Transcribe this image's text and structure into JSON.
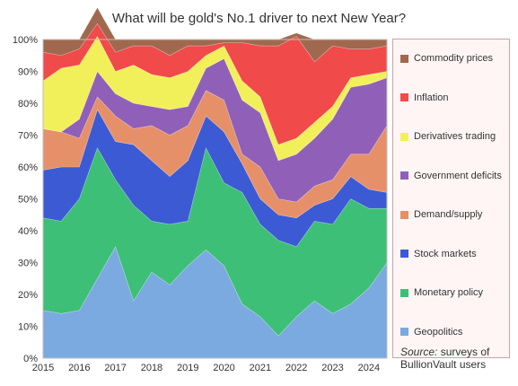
{
  "chart_data": {
    "type": "area",
    "title": "What will be gold's No.1 driver to next New Year?",
    "stacked": "percent",
    "x": [
      2015.0,
      2015.5,
      2016.0,
      2016.5,
      2017.0,
      2017.5,
      2018.0,
      2018.5,
      2019.0,
      2019.5,
      2020.0,
      2020.5,
      2021.0,
      2021.5,
      2022.0,
      2022.5,
      2023.0,
      2023.5,
      2024.0,
      2024.5
    ],
    "xlim": [
      2015,
      2024.5
    ],
    "ylim": [
      0,
      100
    ],
    "x_ticks": [
      "2015",
      "2016",
      "2017",
      "2018",
      "2019",
      "2020",
      "2021",
      "2022",
      "2023",
      "2024"
    ],
    "y_ticks": [
      "0%",
      "10%",
      "20%",
      "30%",
      "40%",
      "50%",
      "60%",
      "70%",
      "80%",
      "90%",
      "100%"
    ],
    "grid": true,
    "legend_position": "right",
    "series": [
      {
        "name": "Geopolitics",
        "color": "#7aaadf",
        "values": [
          15,
          14,
          15,
          25,
          35,
          18,
          27,
          23,
          29,
          34,
          29,
          17,
          13,
          7,
          13,
          18,
          14,
          17,
          22,
          30
        ]
      },
      {
        "name": "Monetary policy",
        "color": "#3dbf77",
        "values": [
          29,
          29,
          35,
          41,
          21,
          30,
          16,
          19,
          14,
          32,
          26,
          35,
          29,
          30,
          22,
          25,
          28,
          33,
          25,
          17
        ]
      },
      {
        "name": "Stock markets",
        "color": "#3c5ad3",
        "values": [
          15,
          17,
          10,
          12,
          12,
          19,
          19,
          15,
          19,
          10,
          16,
          9,
          8,
          8,
          9,
          5,
          8,
          7,
          6,
          5
        ]
      },
      {
        "name": "Demand/supply",
        "color": "#e6906a",
        "values": [
          13,
          11,
          9,
          4,
          8,
          5,
          11,
          13,
          11,
          8,
          10,
          3,
          10,
          5,
          5,
          6,
          6,
          7,
          11,
          21
        ]
      },
      {
        "name": "Government deficits",
        "color": "#9060b8",
        "values": [
          0,
          0,
          6,
          8,
          7,
          8,
          6,
          8,
          6,
          7,
          13,
          17,
          17,
          12,
          15,
          15,
          19,
          21,
          22,
          15
        ]
      },
      {
        "name": "Derivatives trading",
        "color": "#f2f05a",
        "values": [
          15,
          20,
          17,
          11,
          7,
          12,
          10,
          10,
          11,
          4,
          4,
          6,
          5,
          5,
          5,
          5,
          4,
          3,
          3,
          2
        ]
      },
      {
        "name": "Inflation",
        "color": "#f04a4a",
        "values": [
          9,
          4,
          5,
          4,
          6,
          6,
          9,
          7,
          8,
          3,
          1,
          12,
          16,
          31,
          32,
          19,
          19,
          9,
          8,
          8
        ]
      },
      {
        "name": "Commodity prices",
        "color": "#a0694f",
        "values": [
          4,
          5,
          3,
          5,
          4,
          2,
          2,
          5,
          2,
          2,
          1,
          1,
          2,
          2,
          1,
          7,
          2,
          3,
          3,
          2
        ]
      }
    ],
    "source_lead": "Source:",
    "source_text": "surveys of BullionVault users"
  }
}
